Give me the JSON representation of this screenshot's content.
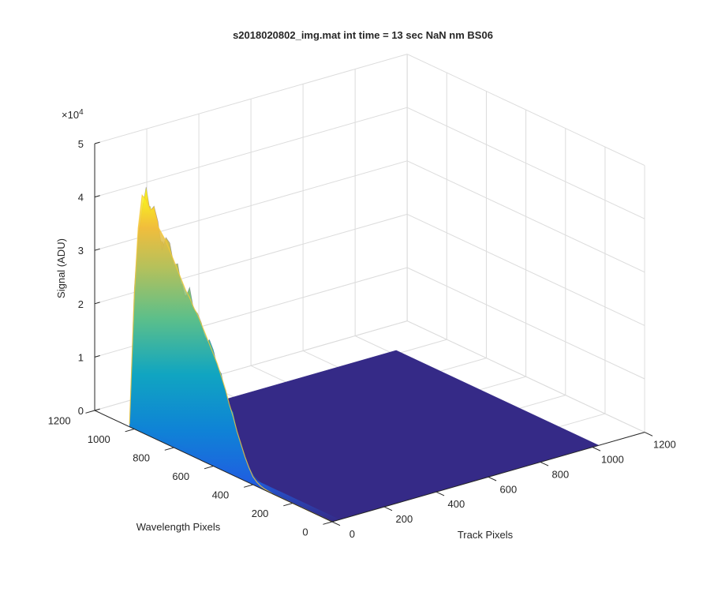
{
  "chart_data": {
    "type": "surface",
    "title": "s2018020802_img.mat int time = 13 sec  NaN nm BS06",
    "xlabel": "Track Pixels",
    "ylabel": "Wavelength Pixels",
    "zlabel": "Signal (ADU)",
    "z_exponent_label": "×10",
    "z_exponent_power": "4",
    "xlim": [
      0,
      1200
    ],
    "ylim": [
      0,
      1200
    ],
    "zlim": [
      0,
      50000
    ],
    "x_ticks": [
      "0",
      "200",
      "400",
      "600",
      "800",
      "1000",
      "1200"
    ],
    "y_ticks": [
      "0",
      "200",
      "400",
      "600",
      "800",
      "1000",
      "1200"
    ],
    "z_ticks": [
      "0",
      "1",
      "2",
      "3",
      "4",
      "5"
    ],
    "grid": true,
    "colormap": "parula",
    "surface_extent": {
      "track": [
        0,
        1024
      ],
      "wavelength": [
        0,
        1024
      ]
    },
    "signal_band": {
      "track": [
        0,
        20
      ]
    },
    "peak_profile": [
      {
        "wavelength": 1024,
        "signal": 500
      },
      {
        "wavelength": 1000,
        "signal": 25000
      },
      {
        "wavelength": 980,
        "signal": 38000
      },
      {
        "wavelength": 960,
        "signal": 44500
      },
      {
        "wavelength": 940,
        "signal": 44000
      },
      {
        "wavelength": 920,
        "signal": 42500
      },
      {
        "wavelength": 900,
        "signal": 43000
      },
      {
        "wavelength": 880,
        "signal": 40000
      },
      {
        "wavelength": 860,
        "signal": 39000
      },
      {
        "wavelength": 840,
        "signal": 38000
      },
      {
        "wavelength": 820,
        "signal": 36500
      },
      {
        "wavelength": 800,
        "signal": 35000
      },
      {
        "wavelength": 780,
        "signal": 33500
      },
      {
        "wavelength": 760,
        "signal": 32000
      },
      {
        "wavelength": 740,
        "signal": 30500
      },
      {
        "wavelength": 720,
        "signal": 29500
      },
      {
        "wavelength": 700,
        "signal": 28000
      },
      {
        "wavelength": 680,
        "signal": 27000
      },
      {
        "wavelength": 660,
        "signal": 25500
      },
      {
        "wavelength": 640,
        "signal": 24000
      },
      {
        "wavelength": 620,
        "signal": 22500
      },
      {
        "wavelength": 600,
        "signal": 21000
      },
      {
        "wavelength": 580,
        "signal": 19500
      },
      {
        "wavelength": 560,
        "signal": 17500
      },
      {
        "wavelength": 540,
        "signal": 15500
      },
      {
        "wavelength": 520,
        "signal": 13000
      },
      {
        "wavelength": 500,
        "signal": 11000
      },
      {
        "wavelength": 480,
        "signal": 8500
      },
      {
        "wavelength": 460,
        "signal": 6500
      },
      {
        "wavelength": 440,
        "signal": 4500
      },
      {
        "wavelength": 420,
        "signal": 2800
      },
      {
        "wavelength": 400,
        "signal": 1500
      },
      {
        "wavelength": 380,
        "signal": 800
      },
      {
        "wavelength": 360,
        "signal": 400
      },
      {
        "wavelength": 340,
        "signal": 200
      },
      {
        "wavelength": 320,
        "signal": 100
      },
      {
        "wavelength": 300,
        "signal": 0
      },
      {
        "wavelength": 0,
        "signal": 0
      }
    ]
  }
}
